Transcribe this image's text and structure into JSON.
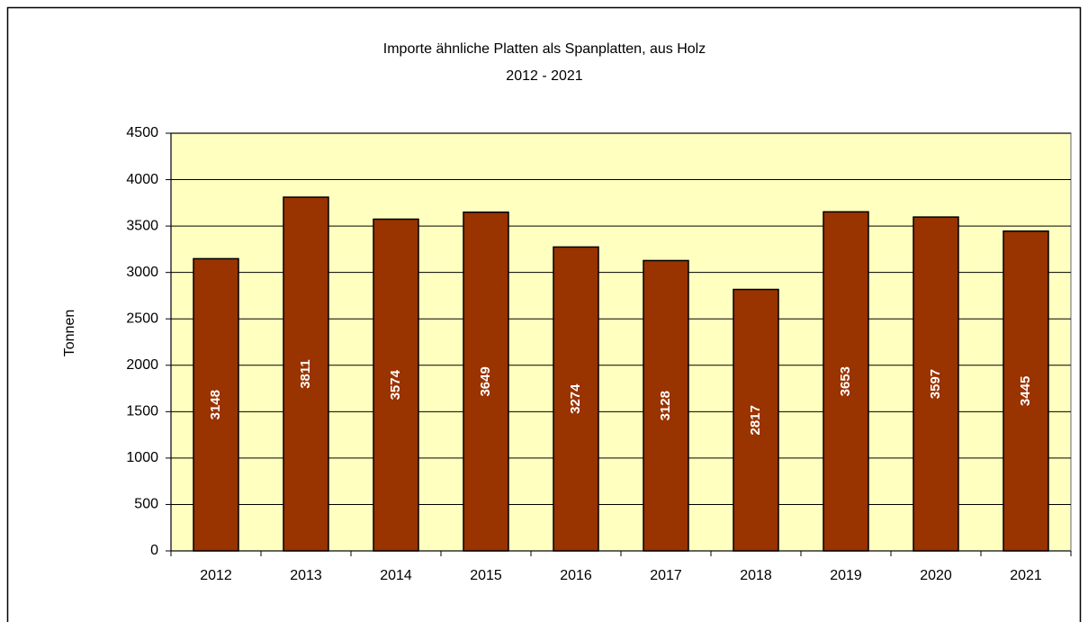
{
  "chart_data": {
    "type": "bar",
    "title": "Importe ähnliche Platten als Spanplatten, aus Holz",
    "subtitle": "2012 - 2021",
    "y_label": "Tonnen",
    "categories": [
      "2012",
      "2013",
      "2014",
      "2015",
      "2016",
      "2017",
      "2018",
      "2019",
      "2020",
      "2021"
    ],
    "values": [
      3148,
      3811,
      3574,
      3649,
      3274,
      3128,
      2817,
      3653,
      3597,
      3445
    ],
    "color": "#993300",
    "background": "#ffffc0",
    "ylim": [
      0,
      4500
    ],
    "yticks": [
      0,
      500,
      1000,
      1500,
      2000,
      2500,
      3000,
      3500,
      4000,
      4500
    ],
    "grid": true
  }
}
